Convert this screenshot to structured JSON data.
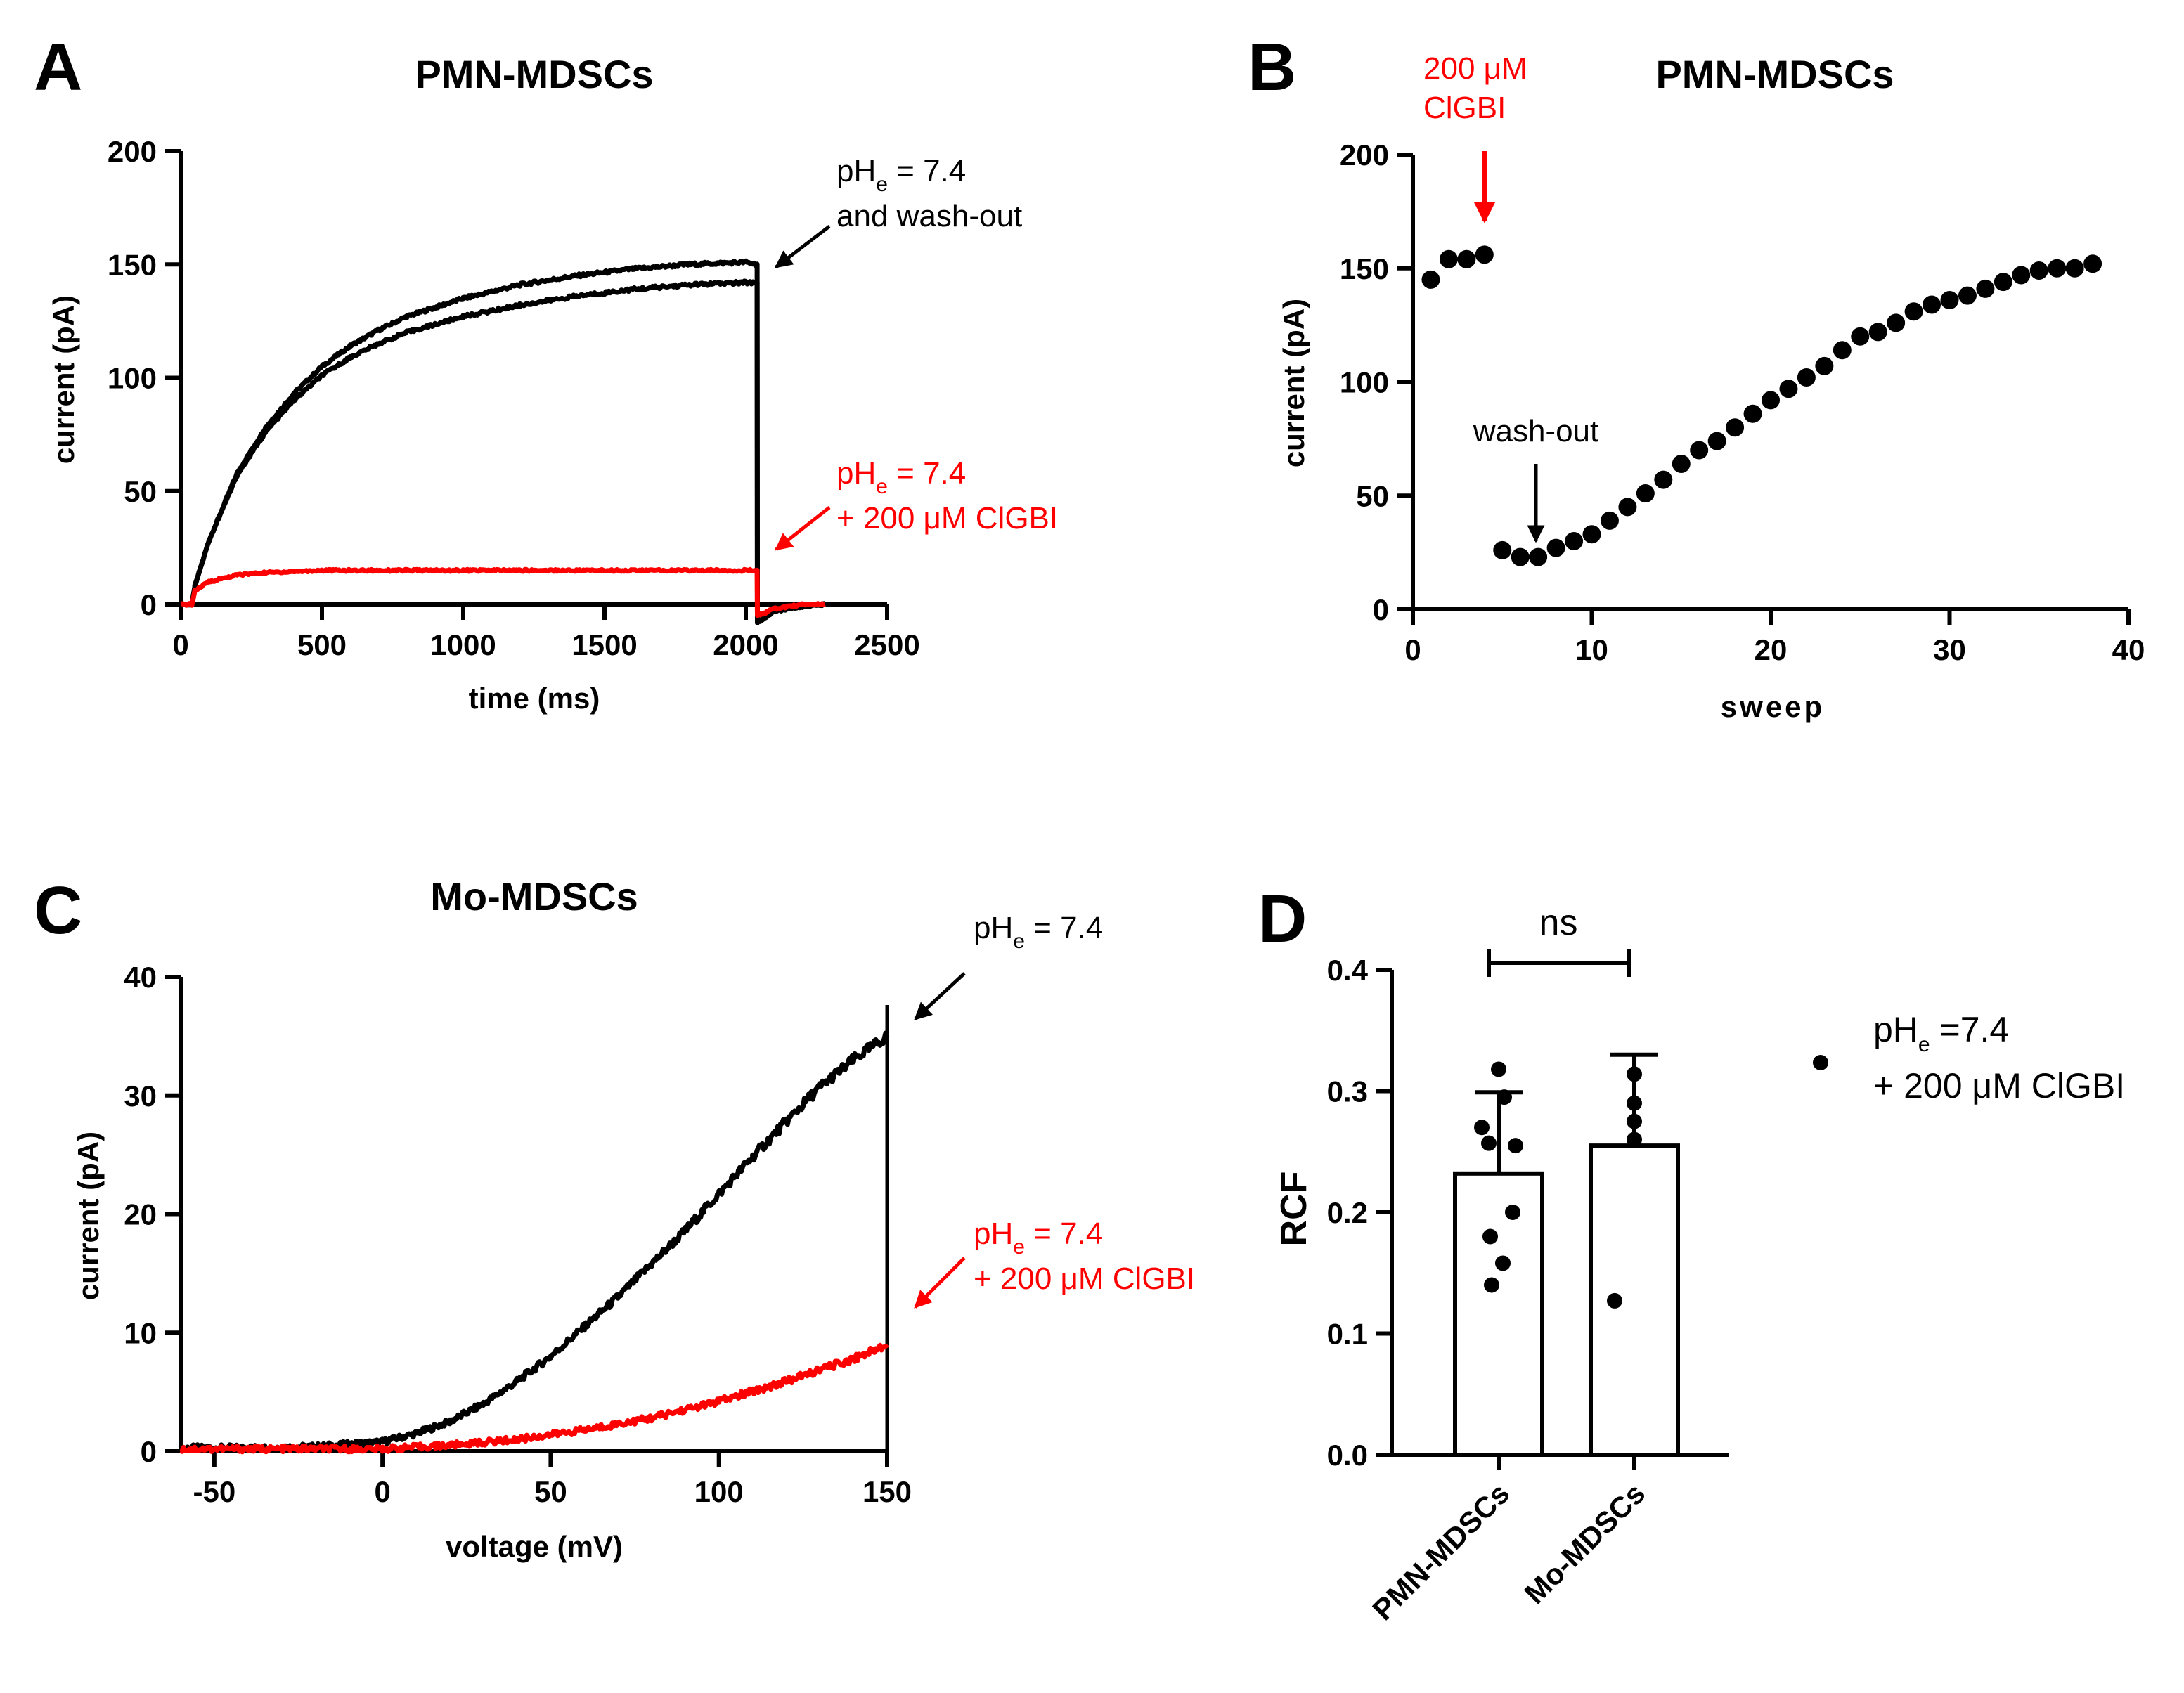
{
  "panels": {
    "A": {
      "letter": "A",
      "title": "PMN-MDSCs"
    },
    "B": {
      "letter": "B",
      "title": "PMN-MDSCs"
    },
    "C": {
      "letter": "C",
      "title": "Mo-MDSCs"
    },
    "D": {
      "letter": "D",
      "title": ""
    }
  },
  "annotations": {
    "A": {
      "black": {
        "line1_pre": "pH",
        "line1_sub": "e",
        "line1_post": " = 7.4",
        "line2": "and wash-out",
        "color": "#000000"
      },
      "red": {
        "line1_pre": "pH",
        "line1_sub": "e",
        "line1_post": " = 7.4",
        "line2": "+ 200 μM ClGBI",
        "color": "#ff0000"
      }
    },
    "B": {
      "drug": {
        "line1": "200 μM",
        "line2": "ClGBI",
        "color": "#ff0000"
      },
      "washout": {
        "text": "wash-out",
        "color": "#000000"
      }
    },
    "C": {
      "black": {
        "line1_pre": "pH",
        "line1_sub": "e",
        "line1_post": " = 7.4",
        "color": "#000000"
      },
      "red": {
        "line1_pre": "pH",
        "line1_sub": "e",
        "line1_post": " = 7.4",
        "line2": "+ 200 μM ClGBI",
        "color": "#ff0000"
      }
    },
    "D": {
      "ns": "ns",
      "legend": {
        "line1_pre": "pH",
        "line1_sub": "e",
        "line1_post": " =7.4",
        "line2": "+ 200 μM ClGBI"
      }
    }
  },
  "chart_data": [
    {
      "id": "A",
      "type": "line",
      "title": "PMN-MDSCs",
      "xlabel": "time (ms)",
      "ylabel": "current (pA)",
      "xlim": [
        0,
        2500
      ],
      "ylim": [
        0,
        200
      ],
      "xticks": [
        0,
        500,
        1000,
        1500,
        2000,
        2500
      ],
      "yticks": [
        0,
        50,
        100,
        150,
        200
      ],
      "series": [
        {
          "name": "pHe = 7.4",
          "color": "#000000",
          "x": [
            0,
            40,
            50,
            100,
            200,
            300,
            400,
            500,
            600,
            700,
            800,
            1000,
            1200,
            1400,
            1600,
            1800,
            2000,
            2040,
            2041,
            2100,
            2200,
            2280
          ],
          "y": [
            0,
            0,
            8,
            28,
            58,
            78,
            93,
            105,
            114,
            121,
            127,
            135,
            141,
            145,
            148,
            150,
            151,
            150,
            -8,
            -3,
            -1,
            0
          ]
        },
        {
          "name": "wash-out",
          "color": "#000000",
          "x": [
            0,
            40,
            50,
            100,
            200,
            300,
            400,
            500,
            600,
            700,
            800,
            1000,
            1200,
            1400,
            1600,
            1800,
            2000,
            2040,
            2041,
            2100,
            2200,
            2280
          ],
          "y": [
            0,
            0,
            8,
            28,
            57,
            76,
            90,
            101,
            109,
            115,
            120,
            127,
            132,
            136,
            139,
            141,
            142,
            142,
            -8,
            -3,
            -1,
            0
          ]
        },
        {
          "name": "pHe = 7.4 + 200 μM ClGBI",
          "color": "#ff0000",
          "x": [
            0,
            40,
            50,
            100,
            200,
            300,
            500,
            800,
            1000,
            1500,
            2000,
            2040,
            2041,
            2100,
            2200,
            2280
          ],
          "y": [
            0,
            0,
            6,
            10,
            13,
            14,
            15,
            15,
            15,
            15,
            15,
            15,
            -5,
            -2,
            0,
            0
          ]
        }
      ]
    },
    {
      "id": "B",
      "type": "scatter",
      "title": "PMN-MDSCs",
      "xlabel": "sweep",
      "ylabel": "current (pA)",
      "xlim": [
        0,
        40
      ],
      "ylim": [
        0,
        200
      ],
      "xticks": [
        0,
        10,
        20,
        30,
        40
      ],
      "yticks": [
        0,
        50,
        100,
        150,
        200
      ],
      "series": [
        {
          "name": "current",
          "color": "#000000",
          "x": [
            1,
            2,
            3,
            4,
            5,
            6,
            7,
            8,
            9,
            10,
            11,
            12,
            13,
            14,
            15,
            16,
            17,
            18,
            19,
            20,
            21,
            22,
            23,
            24,
            25,
            26,
            27,
            28,
            29,
            30,
            31,
            32,
            33,
            34,
            35,
            36,
            37,
            38
          ],
          "y": [
            145,
            154,
            154,
            156,
            26,
            23,
            23,
            27,
            30,
            33,
            39,
            45,
            51,
            57,
            64,
            70,
            74,
            80,
            86,
            92,
            97,
            102,
            107,
            114,
            120,
            122,
            126,
            131,
            134,
            136,
            138,
            141,
            144,
            147,
            149,
            150,
            150,
            152
          ]
        }
      ]
    },
    {
      "id": "C",
      "type": "line",
      "title": "Mo-MDSCs",
      "xlabel": "voltage (mV)",
      "ylabel": "current (pA)",
      "xlim": [
        -60,
        150
      ],
      "ylim": [
        0,
        40
      ],
      "xticks": [
        -50,
        0,
        50,
        100,
        150
      ],
      "yticks": [
        0,
        10,
        20,
        30,
        40
      ],
      "series": [
        {
          "name": "pHe = 7.4",
          "color": "#000000",
          "x": [
            -60,
            -40,
            -20,
            0,
            10,
            20,
            30,
            40,
            50,
            60,
            70,
            80,
            90,
            100,
            110,
            120,
            130,
            140,
            150
          ],
          "y": [
            0.3,
            0.3,
            0.4,
            0.8,
            1.5,
            2.5,
            4,
            5.9,
            8,
            10.5,
            13,
            15.8,
            18.6,
            21.7,
            24.8,
            27.8,
            30.7,
            33,
            35
          ]
        },
        {
          "name": "pHe = 7.4 + 200 μM ClGBI",
          "color": "#ff0000",
          "x": [
            -60,
            -40,
            -20,
            0,
            20,
            40,
            60,
            80,
            100,
            120,
            140,
            150
          ],
          "y": [
            0.2,
            0.2,
            0.2,
            0.2,
            0.5,
            1.0,
            1.8,
            2.8,
            4.2,
            5.9,
            7.8,
            9
          ]
        }
      ]
    },
    {
      "id": "D",
      "type": "bar",
      "title": "",
      "xlabel": "",
      "ylabel": "RCF",
      "ylim": [
        0,
        0.4
      ],
      "yticks": [
        0.0,
        0.1,
        0.2,
        0.3,
        0.4
      ],
      "categories": [
        "PMN-MDSCs",
        "Mo-MDSCs"
      ],
      "values": [
        0.232,
        0.255
      ],
      "errors": [
        0.067,
        0.075
      ],
      "points": [
        [
          0.318,
          0.295,
          0.27,
          0.257,
          0.255,
          0.2,
          0.18,
          0.158,
          0.14
        ],
        [
          0.314,
          0.29,
          0.275,
          0.26,
          0.127
        ]
      ],
      "legend": "pHe =7.4 + 200 μM ClGBI",
      "significance": "ns"
    }
  ]
}
